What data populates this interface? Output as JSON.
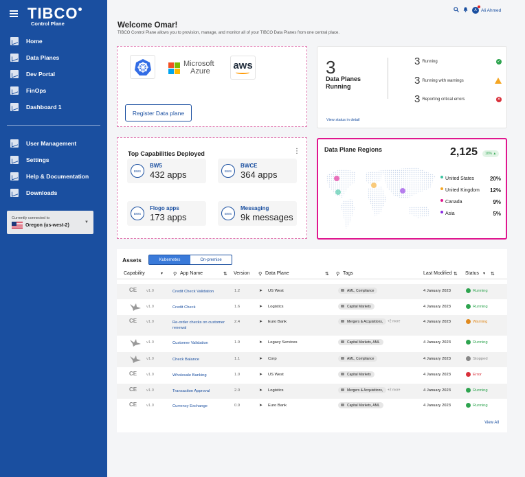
{
  "brand": {
    "logo_text": "TIBCO",
    "logo_sub": "Control Plane"
  },
  "nav": {
    "items": [
      {
        "label": "Home"
      },
      {
        "label": "Data Planes"
      },
      {
        "label": "Dev Portal"
      },
      {
        "label": "FinOps"
      },
      {
        "label": "Dashboard 1"
      }
    ],
    "secondary": [
      {
        "label": "User Management"
      },
      {
        "label": "Settings"
      },
      {
        "label": "Help & Documentation"
      },
      {
        "label": "Downloads"
      }
    ]
  },
  "connection": {
    "label": "Currently connected to",
    "value": "Oregon (us-west-2)"
  },
  "header": {
    "user_name": "Ali Ahmed"
  },
  "welcome": {
    "title": "Welcome Omar!",
    "subtitle": "TIBCO Control Plane allows you to provision, manage, and monitor all of your TIBCO Data Planes from one central place."
  },
  "register": {
    "azure_line1": "Microsoft",
    "azure_line2": "Azure",
    "aws": "aws",
    "button": "Register Data plane"
  },
  "status": {
    "count": "3",
    "label_line1": "Data Planes",
    "label_line2": "Running",
    "rows": [
      {
        "count": "3",
        "label": "Running"
      },
      {
        "count": "3",
        "label": "Running with warnings"
      },
      {
        "count": "3",
        "label": "Reporting critical errors"
      }
    ],
    "view_link": "View status in detail"
  },
  "capabilities": {
    "title": "Top Capabilities Deployed",
    "items": [
      {
        "badge": "BWS",
        "name": "BW5",
        "value": "432 apps"
      },
      {
        "badge": "BWS",
        "name": "BWCE",
        "value": "364 apps"
      },
      {
        "badge": "BWS",
        "name": "Flogo apps",
        "value": "173 apps"
      },
      {
        "badge": "BWS",
        "name": "Messaging",
        "value": "9k messages"
      }
    ]
  },
  "regions": {
    "title": "Data Plane Regions",
    "total": "2,125",
    "change": "10% ▲",
    "legend": [
      {
        "name": "United States",
        "value": "20%",
        "color": "#3cc3a0"
      },
      {
        "name": "United Kingdom",
        "value": "12%",
        "color": "#f5a623"
      },
      {
        "name": "Canada",
        "value": "9%",
        "color": "#e0168f"
      },
      {
        "name": "Asia",
        "value": "5%",
        "color": "#8a2be2"
      }
    ]
  },
  "assets": {
    "title": "Assets",
    "tabs": [
      "Kubernetes",
      "On-premise"
    ],
    "columns": [
      "Capability",
      "App Name",
      "Version",
      "Data Plane",
      "Tags",
      "Last Modified",
      "Status"
    ],
    "rows": [
      {
        "cap": "CE",
        "ver": "v1.0",
        "app": "Credit Check Validation",
        "app2": "",
        "version": "1.2",
        "plane": "US West",
        "tag": "AML, Compliance",
        "more": "",
        "date": "4 January 2023",
        "status": "Running",
        "status_color": "#2ea44f"
      },
      {
        "cap": "bird",
        "ver": "v1.0",
        "app": "Credit Check",
        "app2": "",
        "version": "1.6",
        "plane": "Logistics",
        "tag": "Capital Markets",
        "more": "",
        "date": "4 January 2023",
        "status": "Running",
        "status_color": "#2ea44f"
      },
      {
        "cap": "CE",
        "ver": "v1.0",
        "app": "Re-order checks on customer",
        "app2": "renewal",
        "version": "2.4",
        "plane": "Euro Bank",
        "tag": "Mergers & Acquisitions,",
        "more": "+2 more",
        "date": "4 January 2023",
        "status": "Warning",
        "status_color": "#e08a1e"
      },
      {
        "cap": "bird",
        "ver": "v1.0",
        "app": "Customer Validation",
        "app2": "",
        "version": "1.9",
        "plane": "Legacy Services",
        "tag": "Capital Markets, AML",
        "more": "",
        "date": "4 January 2023",
        "status": "Running",
        "status_color": "#2ea44f"
      },
      {
        "cap": "bird",
        "ver": "v1.0",
        "app": "Check Balance",
        "app2": "",
        "version": "1.1",
        "plane": "Corp",
        "tag": "AML, Compliance",
        "more": "",
        "date": "4 January 2023",
        "status": "Stopped",
        "status_color": "#888888"
      },
      {
        "cap": "CE",
        "ver": "v1.0",
        "app": "Wholesale Banking",
        "app2": "",
        "version": "1.0",
        "plane": "US West",
        "tag": "Capital Markets",
        "more": "",
        "date": "4 January 2023",
        "status": "Error",
        "status_color": "#d9303a"
      },
      {
        "cap": "CE",
        "ver": "v1.0",
        "app": "Transaction Approval",
        "app2": "",
        "version": "2.0",
        "plane": "Logistics",
        "tag": "Mergers & Acquisitions,",
        "more": "+2 more",
        "date": "4 January 2023",
        "status": "Running",
        "status_color": "#2ea44f"
      },
      {
        "cap": "CE",
        "ver": "v1.0",
        "app": "Currency Exchange",
        "app2": "",
        "version": "0.9",
        "plane": "Euro Bank",
        "tag": "Capital Markets, AML",
        "more": "",
        "date": "4 January 2023",
        "status": "Running",
        "status_color": "#2ea44f"
      }
    ],
    "view_all": "View All"
  }
}
